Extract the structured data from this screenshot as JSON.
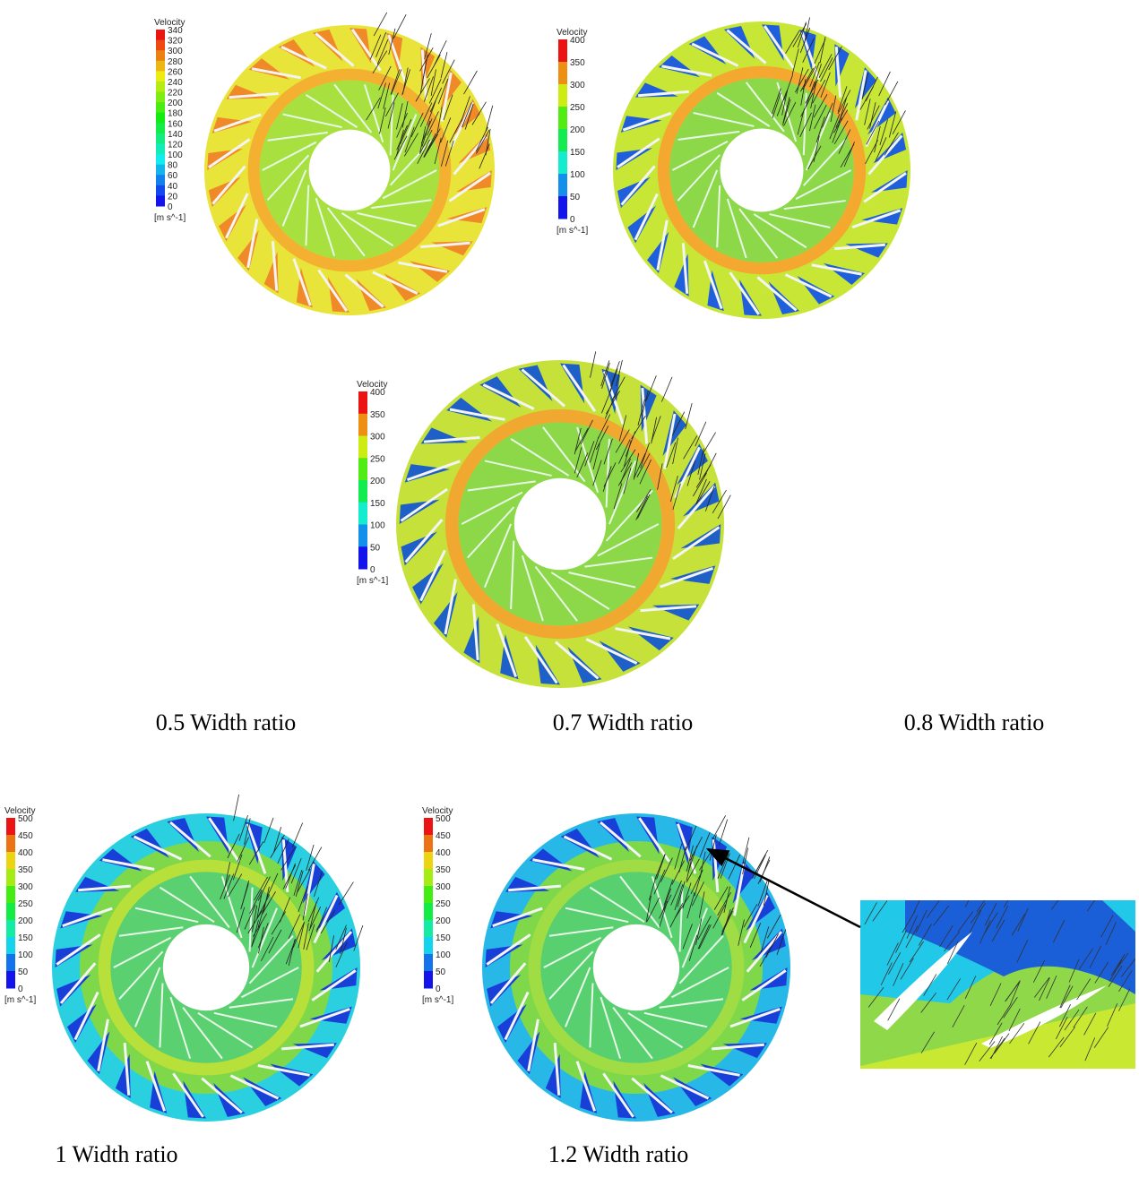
{
  "panels": [
    {
      "legend": {
        "title": "Velocity",
        "ticks": [
          340,
          320,
          300,
          280,
          260,
          240,
          220,
          200,
          180,
          160,
          140,
          120,
          100,
          80,
          60,
          40,
          20,
          0
        ],
        "unit": "[m s^-1]"
      },
      "caption": "0.5 Width ratio"
    },
    {
      "legend": {
        "title": "Velocity",
        "ticks": [
          400,
          350,
          300,
          250,
          200,
          150,
          100,
          50,
          0
        ],
        "unit": "[m s^-1]"
      },
      "caption": "0.7 Width ratio"
    },
    {
      "legend": {
        "title": "Velocity",
        "ticks": [
          400,
          350,
          300,
          250,
          200,
          150,
          100,
          50,
          0
        ],
        "unit": "[m s^-1]"
      },
      "caption": "0.8 Width ratio"
    },
    {
      "legend": {
        "title": "Velocity",
        "ticks": [
          500,
          450,
          400,
          350,
          300,
          250,
          200,
          150,
          100,
          50,
          0
        ],
        "unit": "[m s^-1]"
      },
      "caption": "1 Width ratio"
    },
    {
      "legend": {
        "title": "Velocity",
        "ticks": [
          500,
          450,
          400,
          350,
          300,
          250,
          200,
          150,
          100,
          50,
          0
        ],
        "unit": "[m s^-1]"
      },
      "caption": "1.2 Width ratio"
    }
  ]
}
